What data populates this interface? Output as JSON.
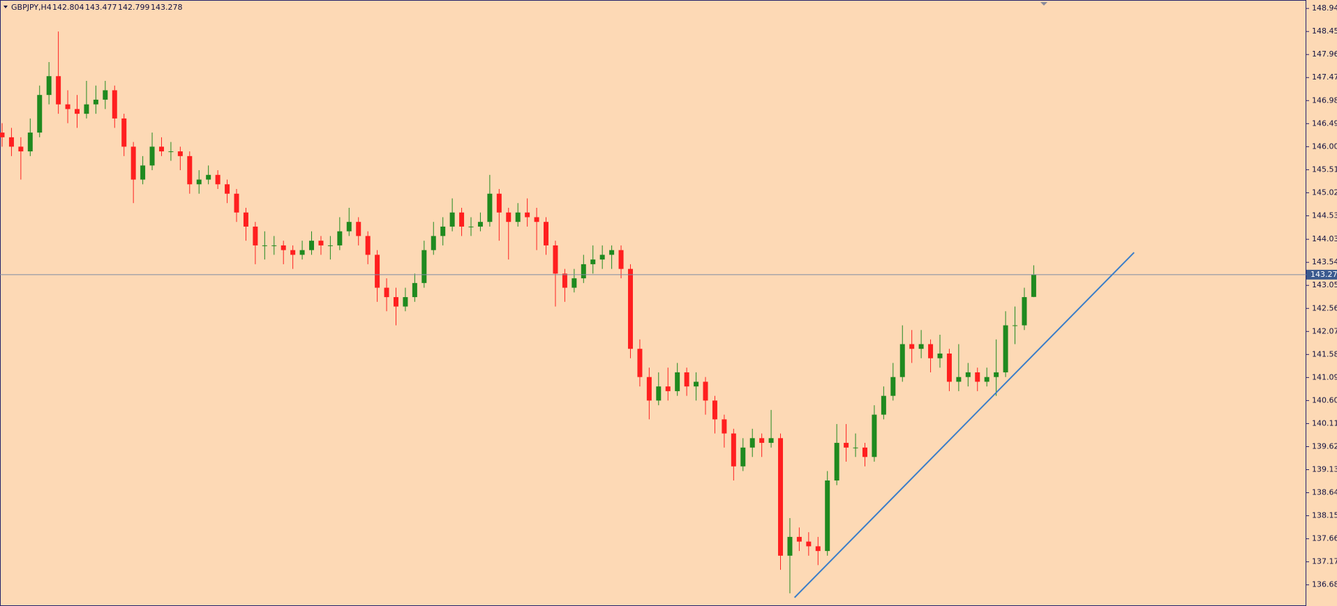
{
  "chart_data": {
    "type": "candlestick",
    "symbol": "GBPJPY,H4",
    "up_color": "#1f8a1f",
    "down_color": "#ff1f1f",
    "background": "#fdd9b5",
    "last_price": 143.278,
    "last_color": "#7d8ca3",
    "grid": false,
    "ylim": [
      136.23,
      149.12
    ],
    "yticks": [
      {
        "value": 148.94,
        "label": "148.940"
      },
      {
        "value": 148.45,
        "label": "148.450"
      },
      {
        "value": 147.96,
        "label": "147.960"
      },
      {
        "value": 147.47,
        "label": "147.470"
      },
      {
        "value": 146.98,
        "label": "146.980"
      },
      {
        "value": 146.49,
        "label": "146.490"
      },
      {
        "value": 146.0,
        "label": "146.000"
      },
      {
        "value": 145.51,
        "label": "145.510"
      },
      {
        "value": 145.02,
        "label": "145.020"
      },
      {
        "value": 144.53,
        "label": "144.530"
      },
      {
        "value": 144.03,
        "label": "144.030"
      },
      {
        "value": 143.54,
        "label": "143.540"
      },
      {
        "value": 143.05,
        "label": "143.050"
      },
      {
        "value": 142.56,
        "label": "142.560"
      },
      {
        "value": 142.07,
        "label": "142.070"
      },
      {
        "value": 141.58,
        "label": "141.580"
      },
      {
        "value": 141.09,
        "label": "141.090"
      },
      {
        "value": 140.6,
        "label": "140.600"
      },
      {
        "value": 140.11,
        "label": "140.110"
      },
      {
        "value": 139.62,
        "label": "139.620"
      },
      {
        "value": 139.13,
        "label": "139.130"
      },
      {
        "value": 138.64,
        "label": "138.640"
      },
      {
        "value": 138.15,
        "label": "138.150"
      },
      {
        "value": 137.66,
        "label": "137.660"
      },
      {
        "value": 137.17,
        "label": "137.170"
      },
      {
        "value": 136.68,
        "label": "136.680"
      }
    ],
    "trendline": {
      "x": [
        84.5,
        120.7
      ],
      "y": [
        136.41,
        143.75
      ],
      "color": "#3a7dc9"
    },
    "candles": [
      [
        146.3,
        146.5,
        146.0,
        146.2
      ],
      [
        146.2,
        146.4,
        145.8,
        146.0
      ],
      [
        146.0,
        146.2,
        145.3,
        145.9
      ],
      [
        145.9,
        146.6,
        145.8,
        146.3
      ],
      [
        146.3,
        147.3,
        146.2,
        147.1
      ],
      [
        147.1,
        147.8,
        146.9,
        147.5
      ],
      [
        147.5,
        148.45,
        146.7,
        146.9
      ],
      [
        146.9,
        147.2,
        146.5,
        146.8
      ],
      [
        146.8,
        147.1,
        146.4,
        146.7
      ],
      [
        146.7,
        147.4,
        146.6,
        146.9
      ],
      [
        146.9,
        147.3,
        146.7,
        147.0
      ],
      [
        147.0,
        147.4,
        146.8,
        147.2
      ],
      [
        147.2,
        147.3,
        146.4,
        146.6
      ],
      [
        146.6,
        146.7,
        145.8,
        146.0
      ],
      [
        146.0,
        146.1,
        144.8,
        145.3
      ],
      [
        145.3,
        145.8,
        145.2,
        145.6
      ],
      [
        145.6,
        146.3,
        145.5,
        146.0
      ],
      [
        146.0,
        146.2,
        145.8,
        145.9
      ],
      [
        145.9,
        146.1,
        145.7,
        145.9
      ],
      [
        145.9,
        146.0,
        145.5,
        145.8
      ],
      [
        145.8,
        145.9,
        145.0,
        145.2
      ],
      [
        145.2,
        145.5,
        145.0,
        145.3
      ],
      [
        145.3,
        145.6,
        145.2,
        145.4
      ],
      [
        145.4,
        145.5,
        145.1,
        145.2
      ],
      [
        145.2,
        145.3,
        144.8,
        145.0
      ],
      [
        145.0,
        145.1,
        144.4,
        144.6
      ],
      [
        144.6,
        144.7,
        144.0,
        144.3
      ],
      [
        144.3,
        144.4,
        143.5,
        143.9
      ],
      [
        143.9,
        144.2,
        143.6,
        143.9
      ],
      [
        143.9,
        144.1,
        143.7,
        143.9
      ],
      [
        143.9,
        144.0,
        143.5,
        143.8
      ],
      [
        143.8,
        143.9,
        143.4,
        143.7
      ],
      [
        143.7,
        144.0,
        143.6,
        143.8
      ],
      [
        143.8,
        144.2,
        143.7,
        144.0
      ],
      [
        144.0,
        144.1,
        143.7,
        143.9
      ],
      [
        143.9,
        144.1,
        143.6,
        143.9
      ],
      [
        143.9,
        144.5,
        143.8,
        144.2
      ],
      [
        144.2,
        144.7,
        144.1,
        144.4
      ],
      [
        144.4,
        144.5,
        143.9,
        144.1
      ],
      [
        144.1,
        144.2,
        143.5,
        143.7
      ],
      [
        143.7,
        143.8,
        142.7,
        143.0
      ],
      [
        143.0,
        143.2,
        142.5,
        142.8
      ],
      [
        142.8,
        143.0,
        142.2,
        142.6
      ],
      [
        142.6,
        143.0,
        142.5,
        142.8
      ],
      [
        142.8,
        143.3,
        142.7,
        143.1
      ],
      [
        143.1,
        144.0,
        143.0,
        143.8
      ],
      [
        143.8,
        144.4,
        143.7,
        144.1
      ],
      [
        144.1,
        144.5,
        143.9,
        144.3
      ],
      [
        144.3,
        144.9,
        144.2,
        144.6
      ],
      [
        144.6,
        144.7,
        144.1,
        144.3
      ],
      [
        144.3,
        144.5,
        144.1,
        144.3
      ],
      [
        144.3,
        144.6,
        144.2,
        144.4
      ],
      [
        144.4,
        145.4,
        144.3,
        145.0
      ],
      [
        145.0,
        145.1,
        144.0,
        144.6
      ],
      [
        144.6,
        144.7,
        143.6,
        144.4
      ],
      [
        144.4,
        144.8,
        144.3,
        144.6
      ],
      [
        144.6,
        144.9,
        144.3,
        144.5
      ],
      [
        144.5,
        144.7,
        143.8,
        144.4
      ],
      [
        144.4,
        144.5,
        143.7,
        143.9
      ],
      [
        143.9,
        144.0,
        142.6,
        143.3
      ],
      [
        143.3,
        143.4,
        142.7,
        143.0
      ],
      [
        143.0,
        143.4,
        142.9,
        143.2
      ],
      [
        143.2,
        143.7,
        143.1,
        143.5
      ],
      [
        143.5,
        143.9,
        143.3,
        143.6
      ],
      [
        143.6,
        143.9,
        143.4,
        143.7
      ],
      [
        143.7,
        143.9,
        143.4,
        143.8
      ],
      [
        143.8,
        143.9,
        143.2,
        143.4
      ],
      [
        143.4,
        143.5,
        141.5,
        141.7
      ],
      [
        141.7,
        141.9,
        140.9,
        141.1
      ],
      [
        141.1,
        141.3,
        140.2,
        140.6
      ],
      [
        140.6,
        141.2,
        140.5,
        140.9
      ],
      [
        140.9,
        141.3,
        140.6,
        140.8
      ],
      [
        140.8,
        141.4,
        140.7,
        141.2
      ],
      [
        141.2,
        141.3,
        140.7,
        140.9
      ],
      [
        140.9,
        141.2,
        140.6,
        141.0
      ],
      [
        141.0,
        141.1,
        140.3,
        140.6
      ],
      [
        140.6,
        140.7,
        139.9,
        140.2
      ],
      [
        140.2,
        140.3,
        139.6,
        139.9
      ],
      [
        139.9,
        140.0,
        138.9,
        139.2
      ],
      [
        139.2,
        139.8,
        139.1,
        139.6
      ],
      [
        139.6,
        140.0,
        139.4,
        139.8
      ],
      [
        139.8,
        139.9,
        139.4,
        139.7
      ],
      [
        139.7,
        140.4,
        139.6,
        139.8
      ],
      [
        139.8,
        139.9,
        137.0,
        137.3
      ],
      [
        137.3,
        138.1,
        136.5,
        137.7
      ],
      [
        137.7,
        137.9,
        137.4,
        137.6
      ],
      [
        137.6,
        137.8,
        137.3,
        137.5
      ],
      [
        137.5,
        137.7,
        137.1,
        137.4
      ],
      [
        137.4,
        139.1,
        137.3,
        138.9
      ],
      [
        138.9,
        140.1,
        138.8,
        139.7
      ],
      [
        139.7,
        140.1,
        139.3,
        139.6
      ],
      [
        139.6,
        139.9,
        139.4,
        139.6
      ],
      [
        139.6,
        139.7,
        139.2,
        139.4
      ],
      [
        139.4,
        140.5,
        139.3,
        140.3
      ],
      [
        140.3,
        140.9,
        140.2,
        140.7
      ],
      [
        140.7,
        141.4,
        140.6,
        141.1
      ],
      [
        141.1,
        142.2,
        141.0,
        141.8
      ],
      [
        141.8,
        142.1,
        141.4,
        141.7
      ],
      [
        141.7,
        142.1,
        141.5,
        141.8
      ],
      [
        141.8,
        141.9,
        141.2,
        141.5
      ],
      [
        141.5,
        142.0,
        141.3,
        141.6
      ],
      [
        141.6,
        141.7,
        140.8,
        141.0
      ],
      [
        141.0,
        141.8,
        140.8,
        141.1
      ],
      [
        141.1,
        141.4,
        140.9,
        141.2
      ],
      [
        141.2,
        141.3,
        140.8,
        141.0
      ],
      [
        141.0,
        141.3,
        140.9,
        141.1
      ],
      [
        141.1,
        141.9,
        140.7,
        141.2
      ],
      [
        141.2,
        142.5,
        141.1,
        142.2
      ],
      [
        142.2,
        142.6,
        141.8,
        142.2
      ],
      [
        142.2,
        143.0,
        142.1,
        142.8
      ],
      [
        142.804,
        143.477,
        142.799,
        143.278
      ]
    ]
  }
}
